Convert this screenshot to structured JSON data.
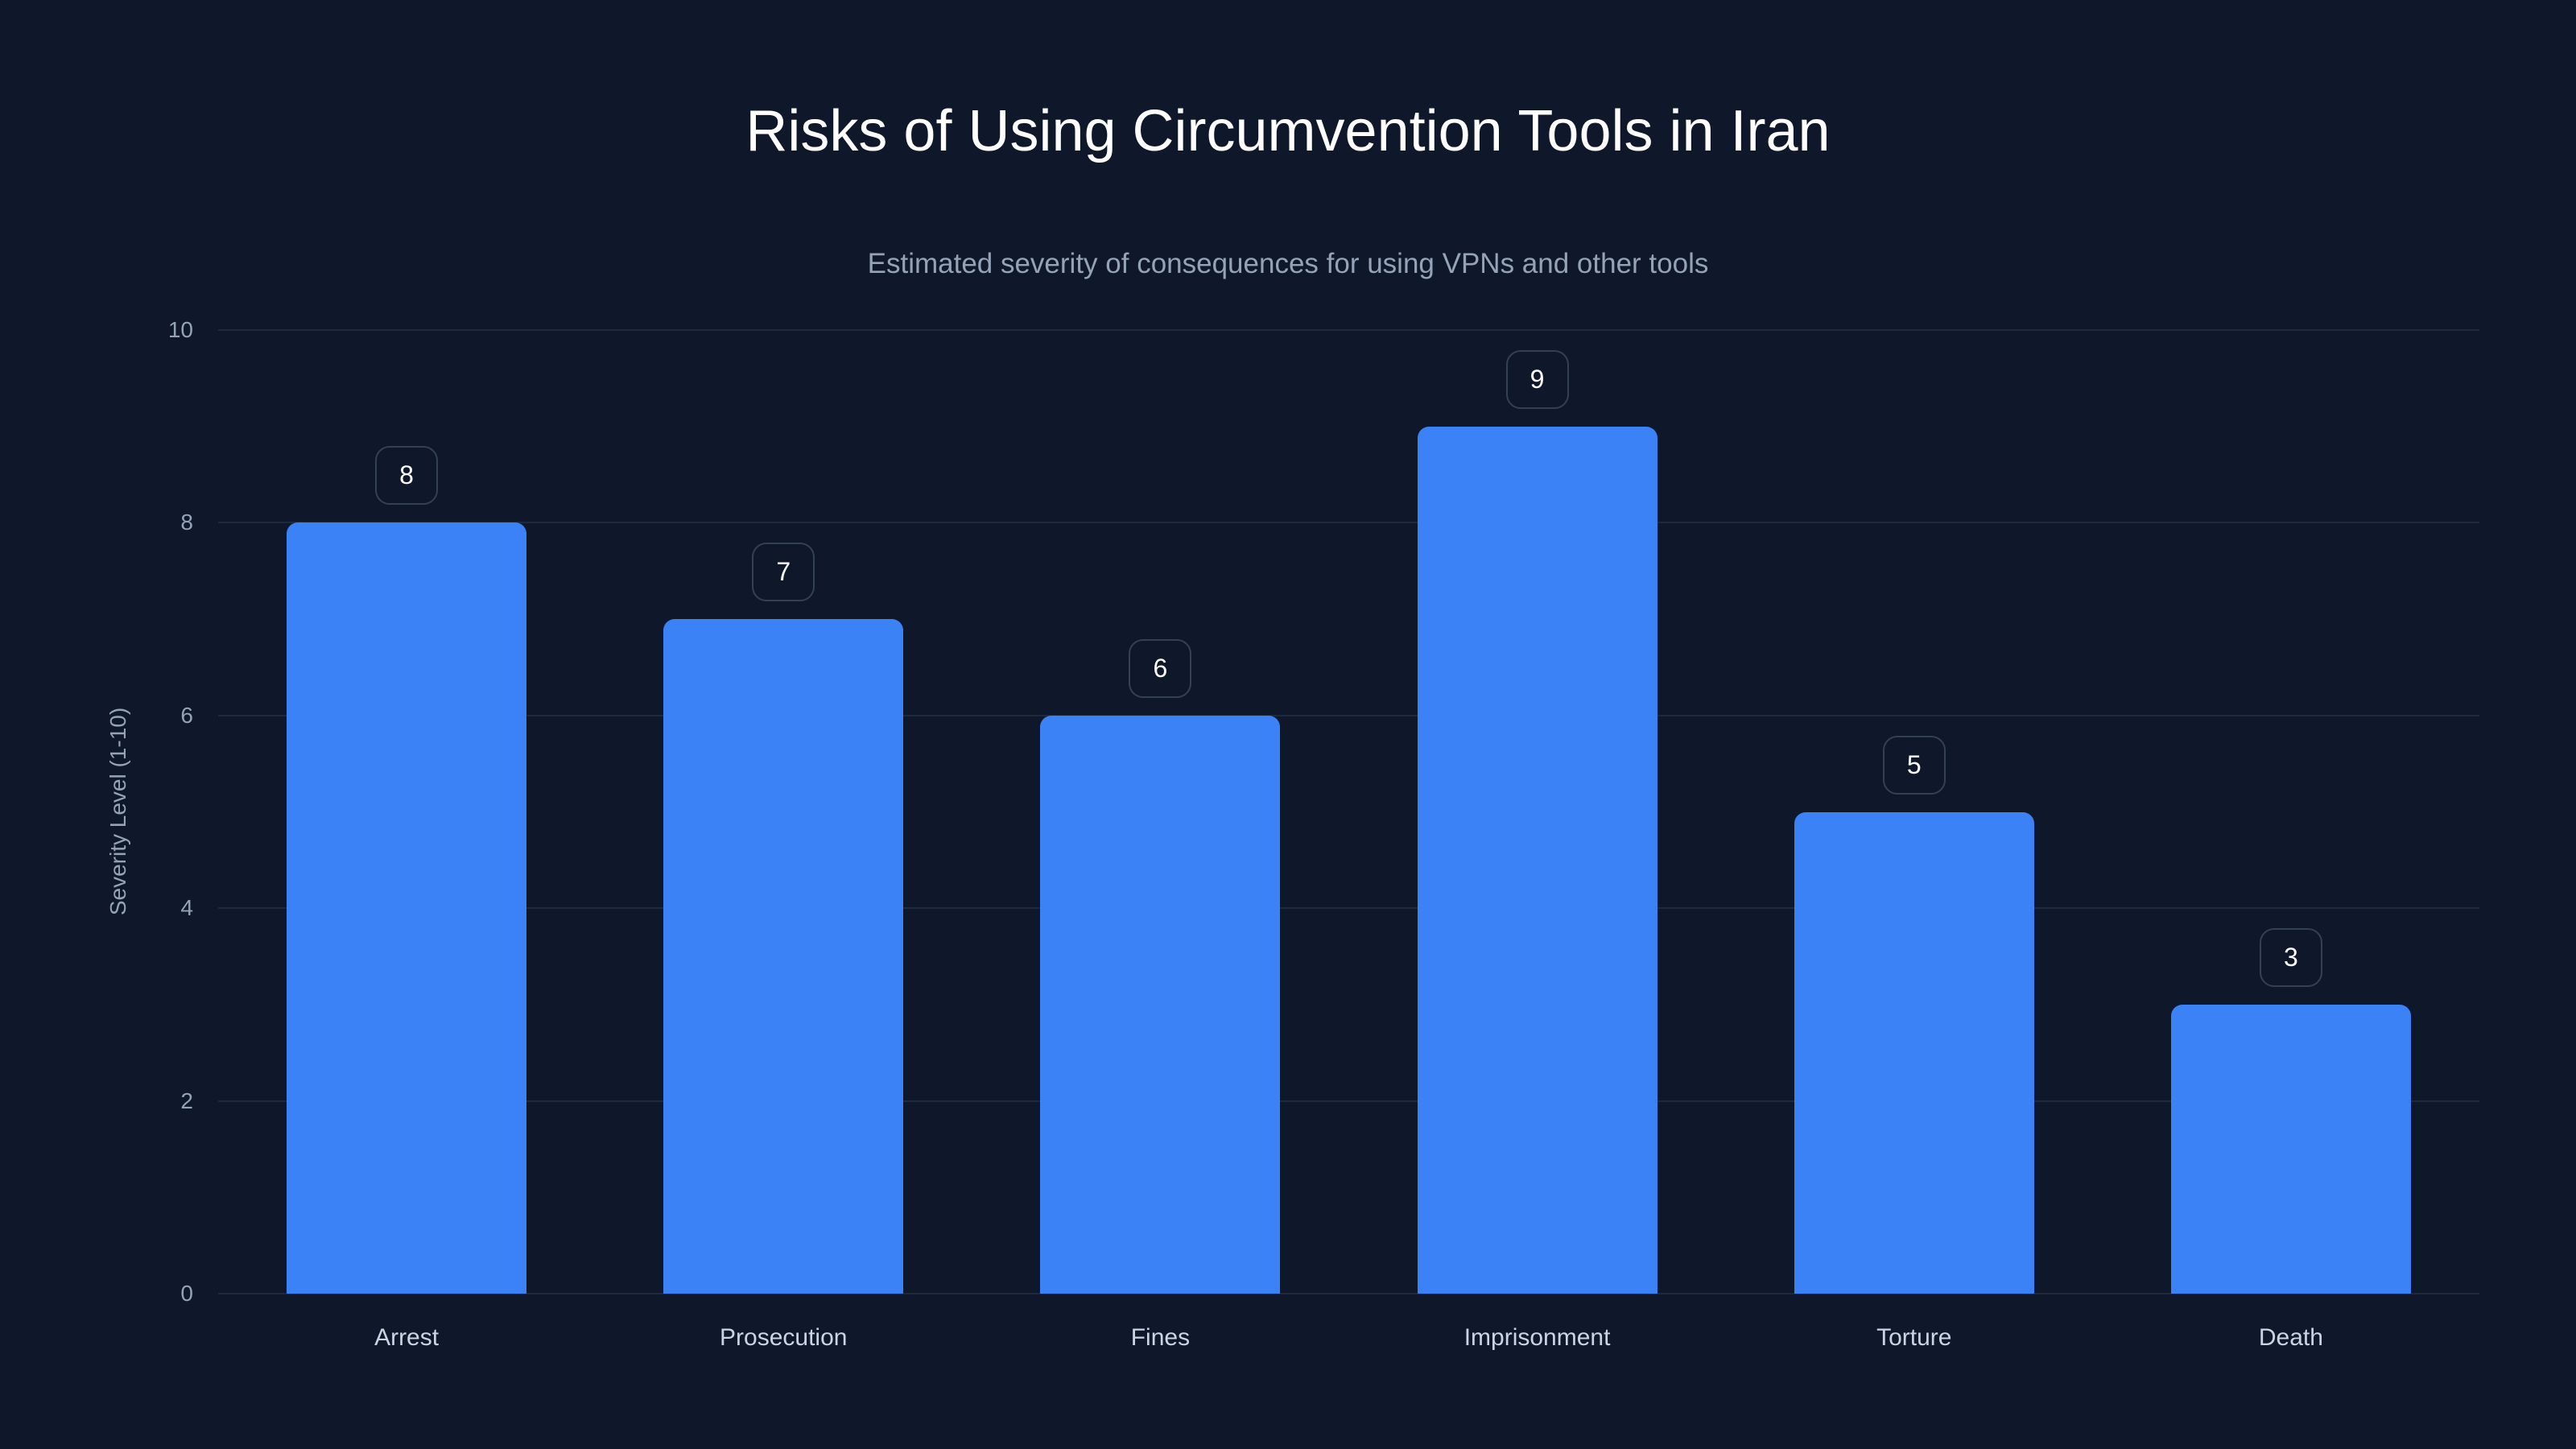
{
  "chart_data": {
    "type": "bar",
    "title": "Risks of Using Circumvention Tools in Iran",
    "subtitle": "Estimated severity of consequences for using VPNs and other tools",
    "xlabel": "",
    "ylabel": "Severity Level (1-10)",
    "categories": [
      "Arrest",
      "Prosecution",
      "Fines",
      "Imprisonment",
      "Torture",
      "Death"
    ],
    "values": [
      8,
      7,
      6,
      9,
      5,
      3
    ],
    "ylim": [
      0,
      10
    ],
    "yticks": [
      0,
      2,
      4,
      6,
      8,
      10
    ],
    "grid": true,
    "legend": null,
    "data_labels": [
      "8",
      "7",
      "6",
      "9",
      "5",
      "3"
    ]
  },
  "colors": {
    "background": "#0f172a",
    "bar": "#3b82f6",
    "gridline": "#1e293b",
    "label_box_border": "#334155",
    "title": "#ffffff",
    "subtitle": "#94a3b8",
    "axis_text": "#94a3b8",
    "category_text": "#cbd5e1"
  },
  "yticks_labels": [
    "0",
    "2",
    "4",
    "6",
    "8",
    "10"
  ]
}
